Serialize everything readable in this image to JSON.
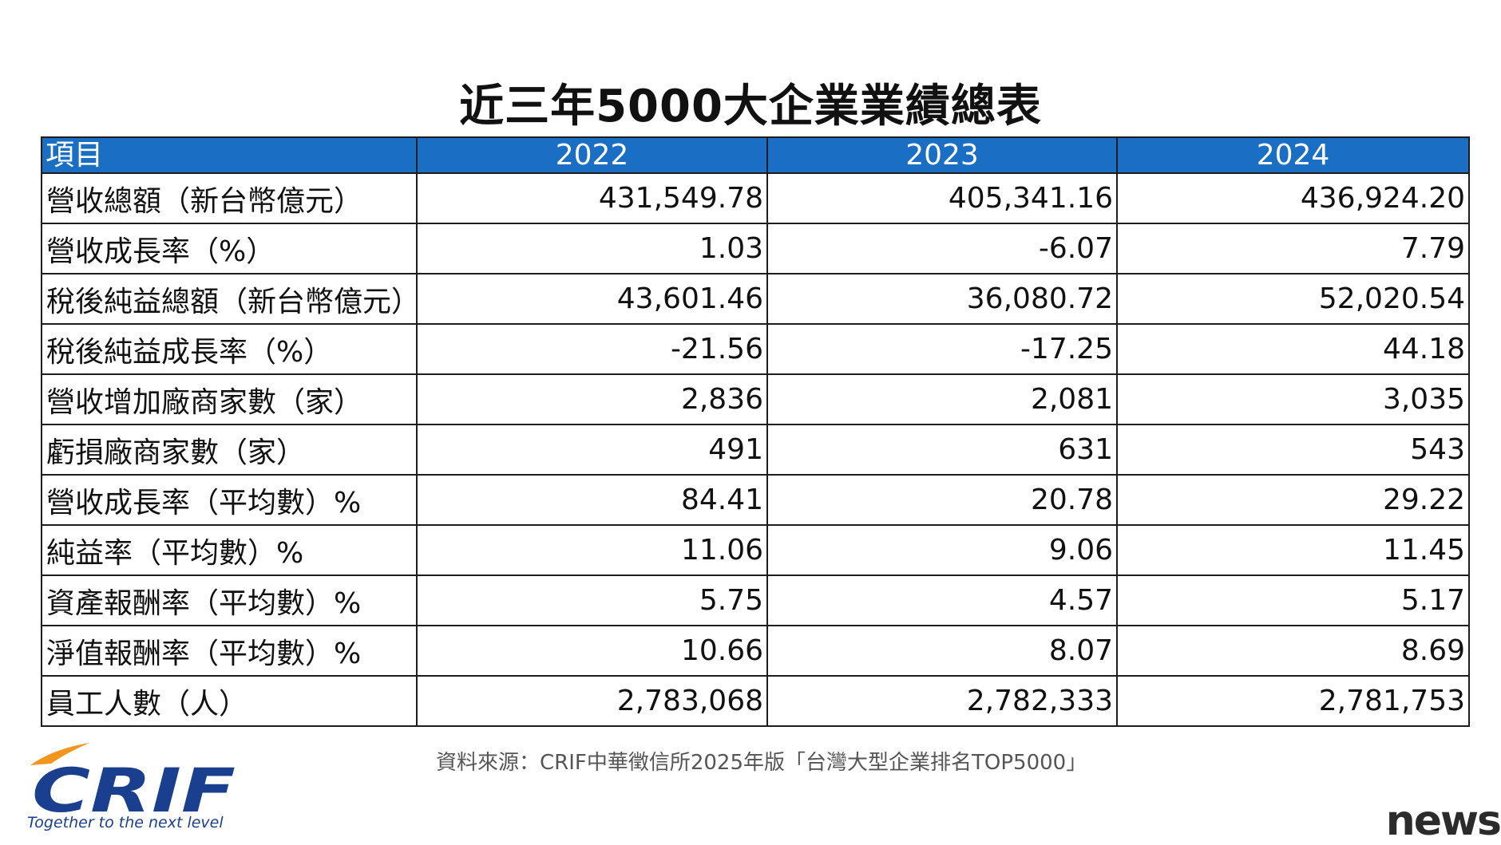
{
  "title": "近三年5000大企業業績總表",
  "table": {
    "headers": [
      "項目",
      "2022",
      "2023",
      "2024"
    ],
    "rows": [
      {
        "label": "營收總額（新台幣億元）",
        "values": [
          "431,549.78",
          "405,341.16",
          "436,924.20"
        ]
      },
      {
        "label": "營收成長率（%）",
        "values": [
          "1.03",
          "-6.07",
          "7.79"
        ]
      },
      {
        "label": "稅後純益總額（新台幣億元）",
        "values": [
          "43,601.46",
          "36,080.72",
          "52,020.54"
        ]
      },
      {
        "label": "稅後純益成長率（%）",
        "values": [
          "-21.56",
          "-17.25",
          "44.18"
        ]
      },
      {
        "label": "營收增加廠商家數（家）",
        "values": [
          "2,836",
          "2,081",
          "3,035"
        ]
      },
      {
        "label": "虧損廠商家數（家）",
        "values": [
          "491",
          "631",
          "543"
        ]
      },
      {
        "label": "營收成長率（平均數）%",
        "values": [
          "84.41",
          "20.78",
          "29.22"
        ]
      },
      {
        "label": "純益率（平均數）%",
        "values": [
          "11.06",
          "9.06",
          "11.45"
        ]
      },
      {
        "label": "資產報酬率（平均數）%",
        "values": [
          "5.75",
          "4.57",
          "5.17"
        ]
      },
      {
        "label": "淨值報酬率（平均數）%",
        "values": [
          "10.66",
          "8.07",
          "8.69"
        ]
      },
      {
        "label": "員工人數（人）",
        "values": [
          "2,783,068",
          "2,782,333",
          "2,781,753"
        ]
      }
    ]
  },
  "source": "資料來源：CRIF中華徵信所2025年版「台灣大型企業排名TOP5000」",
  "logo": {
    "wordmark": "CRIF",
    "tagline": "Together to the next level"
  },
  "watermark": "news",
  "colors": {
    "header_bg": "#1a6ec4",
    "header_text": "#ffffff",
    "border": "#1d1d1d",
    "logo_blue": "#1a3f8f",
    "logo_orange": "#f0961e"
  }
}
